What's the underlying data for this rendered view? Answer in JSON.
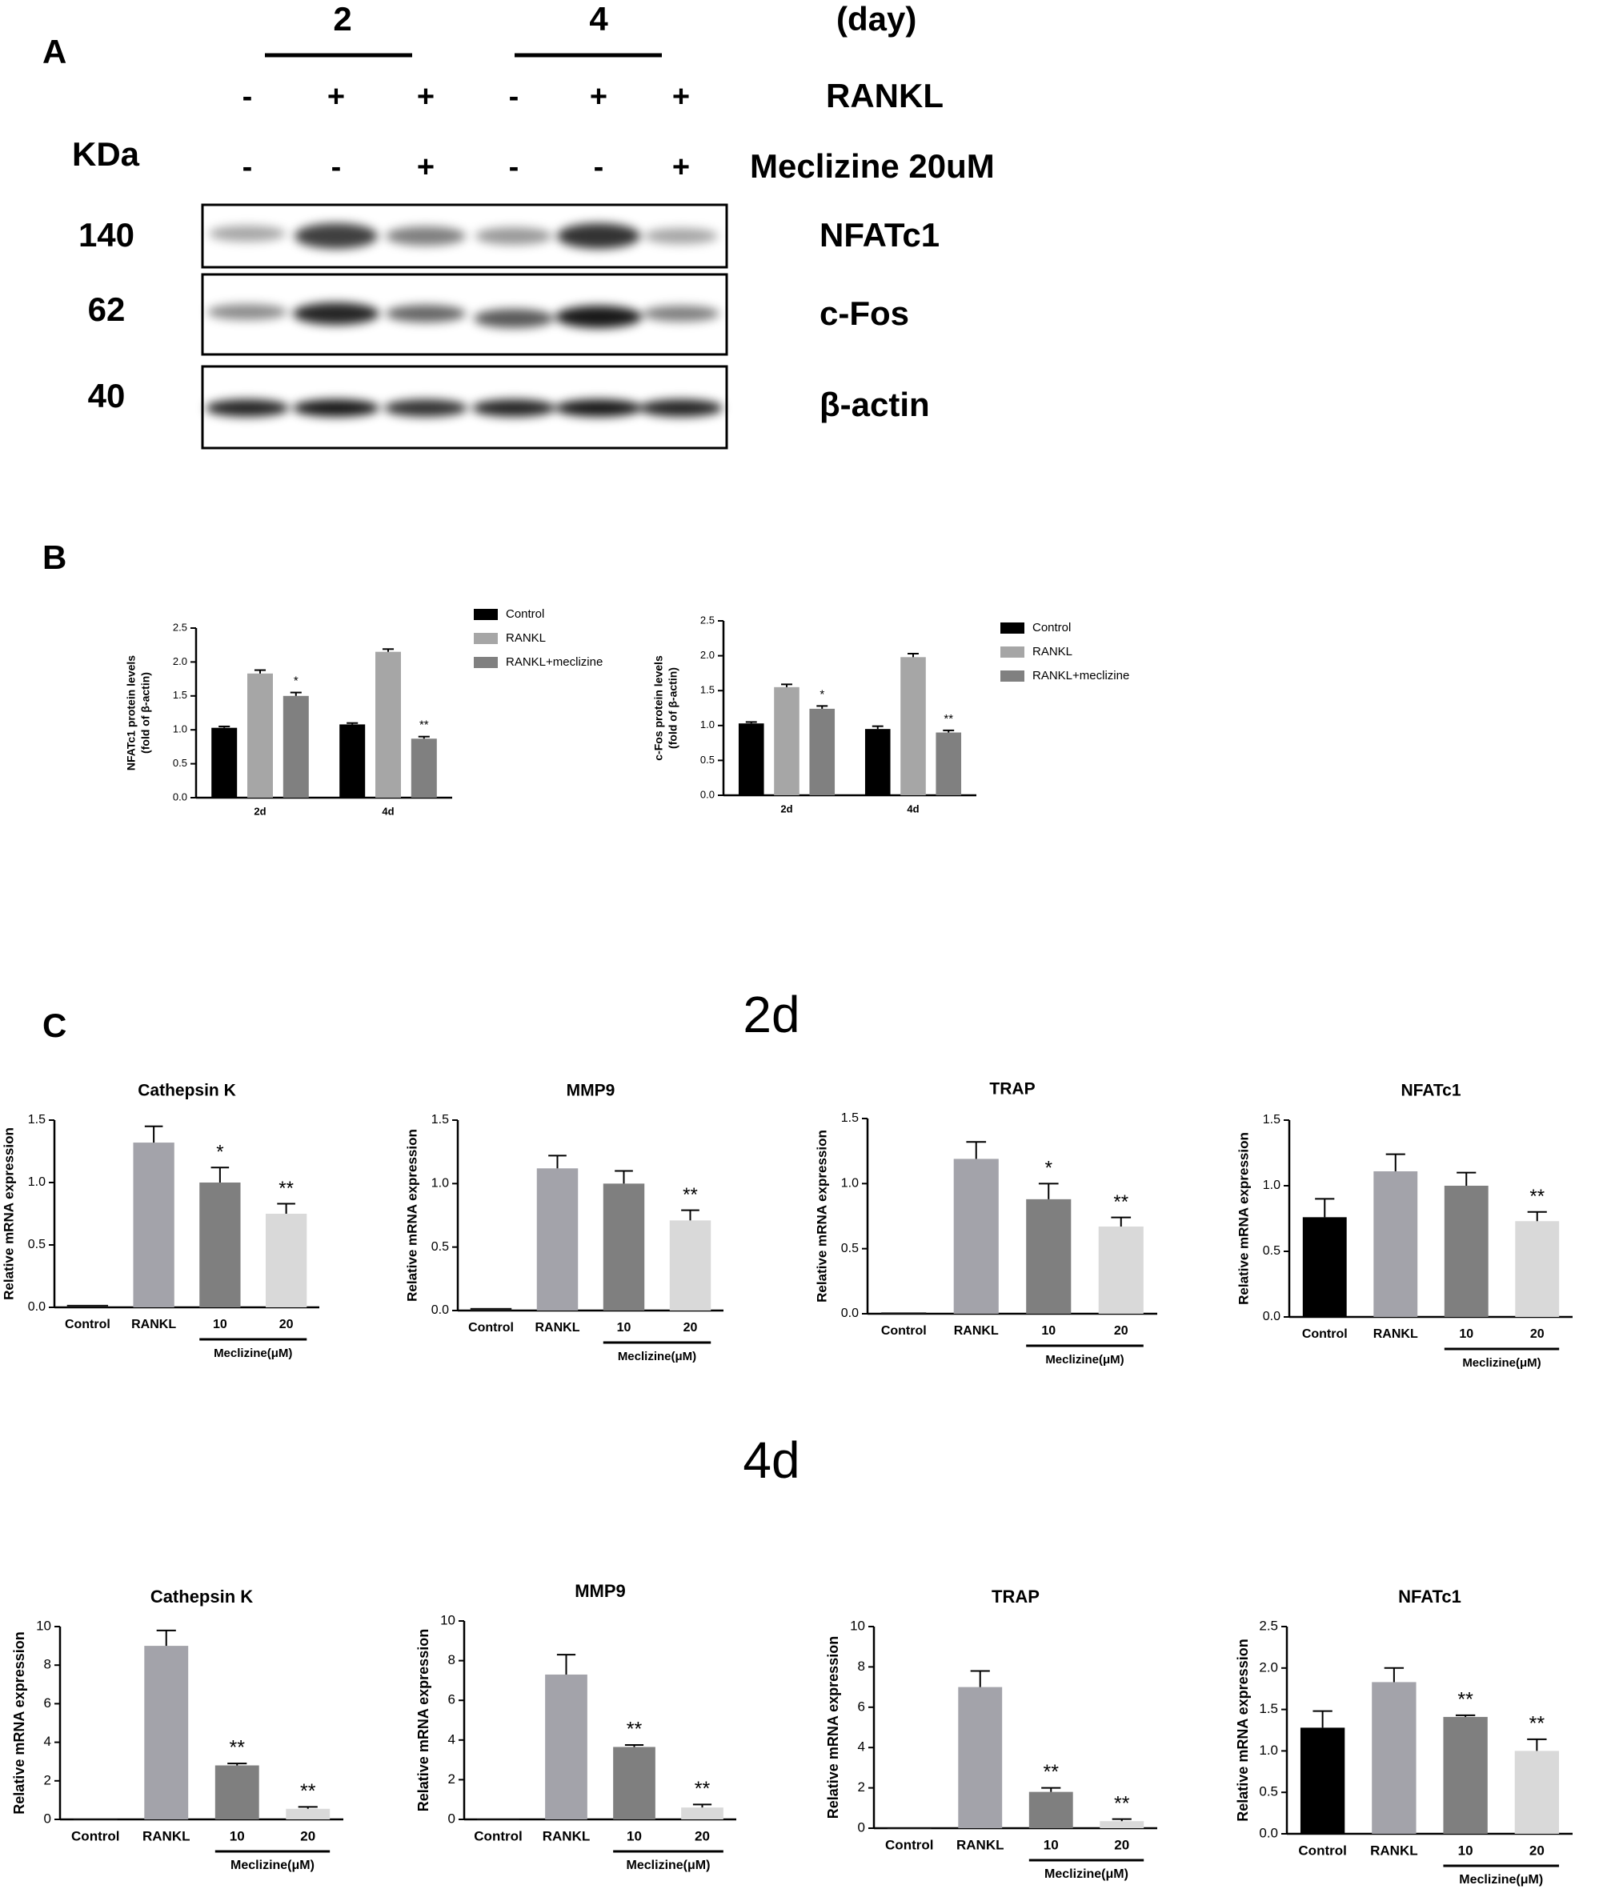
{
  "panels": {
    "a": "A",
    "b": "B",
    "c": "C"
  },
  "sections": {
    "day2": "2d",
    "day4": "4d"
  },
  "blot": {
    "days": [
      "2",
      "4"
    ],
    "day_unit": "(day)",
    "rankl_label": "RANKL",
    "rankl": [
      "-",
      "+",
      "+",
      "-",
      "+",
      "+"
    ],
    "meclizine_label": "Meclizine  20uM",
    "meclizine": [
      "-",
      "-",
      "+",
      "-",
      "-",
      "+"
    ],
    "kda_label": "KDa",
    "rows": [
      {
        "kda": "140",
        "name": "NFATc1"
      },
      {
        "kda": "62",
        "name": "c-Fos"
      },
      {
        "kda": "40",
        "name": "β-actin"
      }
    ]
  },
  "chart_data": [
    {
      "type": "bar",
      "ylabel": [
        "NFATc1 protein levels",
        "(fold of β-actin)"
      ],
      "categories": [
        "2d",
        "4d"
      ],
      "series": [
        {
          "name": "Control",
          "color": "#000000",
          "values": [
            1.03,
            1.08
          ],
          "errors": [
            0.02,
            0.02
          ]
        },
        {
          "name": "RANKL",
          "color": "#a6a6a6",
          "values": [
            1.83,
            2.15
          ],
          "errors": [
            0.05,
            0.04
          ]
        },
        {
          "name": "RANKL+meclizine",
          "color": "#808080",
          "values": [
            1.5,
            0.87
          ],
          "errors": [
            0.05,
            0.03
          ],
          "significance": [
            "*",
            "**"
          ]
        }
      ],
      "ylim": [
        0,
        2.5
      ],
      "yticks": [
        {
          "value": 0,
          "label": "0.0"
        },
        {
          "value": 0.5,
          "label": "0.5"
        },
        {
          "value": 1,
          "label": "1.0"
        },
        {
          "value": 1.5,
          "label": "1.5"
        },
        {
          "value": 2,
          "label": "2.0"
        },
        {
          "value": 2.5,
          "label": "2.5"
        }
      ]
    },
    {
      "type": "bar",
      "ylabel": [
        "c-Fos protein levels",
        "(fold of β-actin)"
      ],
      "categories": [
        "2d",
        "4d"
      ],
      "series": [
        {
          "name": "Control",
          "color": "#000000",
          "values": [
            1.03,
            0.95
          ],
          "errors": [
            0.02,
            0.04
          ]
        },
        {
          "name": "RANKL",
          "color": "#a6a6a6",
          "values": [
            1.55,
            1.98
          ],
          "errors": [
            0.04,
            0.05
          ]
        },
        {
          "name": "RANKL+meclizine",
          "color": "#808080",
          "values": [
            1.24,
            0.9
          ],
          "errors": [
            0.04,
            0.03
          ],
          "significance": [
            "*",
            "**"
          ]
        }
      ],
      "ylim": [
        0,
        2.5
      ],
      "yticks": [
        {
          "value": 0,
          "label": "0.0"
        },
        {
          "value": 0.5,
          "label": "0.5"
        },
        {
          "value": 1,
          "label": "1.0"
        },
        {
          "value": 1.5,
          "label": "1.5"
        },
        {
          "value": 2,
          "label": "2.0"
        },
        {
          "value": 2.5,
          "label": "2.5"
        }
      ]
    },
    {
      "type": "bar",
      "title": "Cathepsin K",
      "ylabel": "Relative mRNA expression",
      "categories": [
        "Control",
        "RANKL",
        "10",
        "20"
      ],
      "xgroup_label": "Meclizine(μM)",
      "values": [
        0.02,
        1.32,
        1.0,
        0.75
      ],
      "errors": [
        0,
        0.13,
        0.12,
        0.08
      ],
      "significance": [
        null,
        null,
        "*",
        "**"
      ],
      "colors": [
        "#1a1a1a",
        "#a3a3aa",
        "#7f7f7f",
        "#d9d9d9"
      ],
      "ylim": [
        0,
        1.5
      ],
      "yticks": [
        {
          "value": 0,
          "label": "0.0"
        },
        {
          "value": 0.5,
          "label": "0.5"
        },
        {
          "value": 1,
          "label": "1.0"
        },
        {
          "value": 1.5,
          "label": "1.5"
        }
      ]
    },
    {
      "type": "bar",
      "title": "MMP9",
      "ylabel": "Relative mRNA expression",
      "categories": [
        "Control",
        "RANKL",
        "10",
        "20"
      ],
      "xgroup_label": "Meclizine(μM)",
      "values": [
        0.02,
        1.12,
        1.0,
        0.71
      ],
      "errors": [
        0,
        0.1,
        0.1,
        0.08
      ],
      "significance": [
        null,
        null,
        null,
        "**"
      ],
      "colors": [
        "#1a1a1a",
        "#a3a3aa",
        "#7f7f7f",
        "#d9d9d9"
      ],
      "ylim": [
        0,
        1.5
      ],
      "yticks": [
        {
          "value": 0,
          "label": "0.0"
        },
        {
          "value": 0.5,
          "label": "0.5"
        },
        {
          "value": 1,
          "label": "1.0"
        },
        {
          "value": 1.5,
          "label": "1.5"
        }
      ]
    },
    {
      "type": "bar",
      "title": "TRAP",
      "ylabel": "Relative mRNA expression",
      "categories": [
        "Control",
        "RANKL",
        "10",
        "20"
      ],
      "xgroup_label": "Meclizine(μM)",
      "values": [
        0.01,
        1.19,
        0.88,
        0.67
      ],
      "errors": [
        0,
        0.13,
        0.12,
        0.07
      ],
      "significance": [
        null,
        null,
        "*",
        "**"
      ],
      "colors": [
        "#1a1a1a",
        "#a3a3aa",
        "#7f7f7f",
        "#d9d9d9"
      ],
      "ylim": [
        0,
        1.5
      ],
      "yticks": [
        {
          "value": 0,
          "label": "0.0"
        },
        {
          "value": 0.5,
          "label": "0.5"
        },
        {
          "value": 1,
          "label": "1.0"
        },
        {
          "value": 1.5,
          "label": "1.5"
        }
      ]
    },
    {
      "type": "bar",
      "title": "NFATc1",
      "ylabel": "Relative mRNA expression",
      "categories": [
        "Control",
        "RANKL",
        "10",
        "20"
      ],
      "xgroup_label": "Meclizine(μM)",
      "values": [
        0.76,
        1.11,
        1.0,
        0.73
      ],
      "errors": [
        0.14,
        0.13,
        0.1,
        0.07
      ],
      "significance": [
        null,
        null,
        null,
        "**"
      ],
      "colors": [
        "#000000",
        "#a3a3aa",
        "#7f7f7f",
        "#d9d9d9"
      ],
      "ylim": [
        0,
        1.5
      ],
      "yticks": [
        {
          "value": 0,
          "label": "0.0"
        },
        {
          "value": 0.5,
          "label": "0.5"
        },
        {
          "value": 1,
          "label": "1.0"
        },
        {
          "value": 1.5,
          "label": "1.5"
        }
      ]
    },
    {
      "type": "bar",
      "title": "Cathepsin K",
      "ylabel": "Relative mRNA expression",
      "categories": [
        "Control",
        "RANKL",
        "10",
        "20"
      ],
      "xgroup_label": "Meclizine(μM)",
      "values": [
        0.02,
        9.0,
        2.8,
        0.55
      ],
      "errors": [
        0,
        0.8,
        0.1,
        0.1
      ],
      "significance": [
        null,
        null,
        "**",
        "**"
      ],
      "colors": [
        "#1a1a1a",
        "#a3a3aa",
        "#7f7f7f",
        "#d9d9d9"
      ],
      "ylim": [
        0,
        10
      ],
      "yticks": [
        0,
        2,
        4,
        6,
        8,
        10
      ]
    },
    {
      "type": "bar",
      "title": "MMP9",
      "ylabel": "Relative mRNA expression",
      "categories": [
        "Control",
        "RANKL",
        "10",
        "20"
      ],
      "xgroup_label": "Meclizine(μM)",
      "values": [
        0.02,
        7.3,
        3.65,
        0.6
      ],
      "errors": [
        0,
        1.0,
        0.1,
        0.15
      ],
      "significance": [
        null,
        null,
        "**",
        "**"
      ],
      "colors": [
        "#1a1a1a",
        "#a3a3aa",
        "#7f7f7f",
        "#d9d9d9"
      ],
      "ylim": [
        0,
        10
      ],
      "yticks": [
        0,
        2,
        4,
        6,
        8,
        10
      ]
    },
    {
      "type": "bar",
      "title": "TRAP",
      "ylabel": "Relative mRNA expression",
      "categories": [
        "Control",
        "RANKL",
        "10",
        "20"
      ],
      "xgroup_label": "Meclizine(μM)",
      "values": [
        0,
        7.0,
        1.8,
        0.35
      ],
      "errors": [
        0,
        0.8,
        0.2,
        0.1
      ],
      "significance": [
        null,
        null,
        "**",
        "**"
      ],
      "colors": [
        "#1a1a1a",
        "#a3a3aa",
        "#7f7f7f",
        "#d9d9d9"
      ],
      "ylim": [
        0,
        10
      ],
      "yticks": [
        0,
        2,
        4,
        6,
        8,
        10
      ]
    },
    {
      "type": "bar",
      "title": "NFATc1",
      "ylabel": "Relative mRNA expression",
      "categories": [
        "Control",
        "RANKL",
        "10",
        "20"
      ],
      "xgroup_label": "Meclizine(μM)",
      "values": [
        1.28,
        1.83,
        1.41,
        1.0
      ],
      "errors": [
        0.2,
        0.17,
        0.02,
        0.14
      ],
      "significance": [
        null,
        null,
        "**",
        "**"
      ],
      "colors": [
        "#000000",
        "#a3a3aa",
        "#7f7f7f",
        "#d9d9d9"
      ],
      "ylim": [
        0,
        2.5
      ],
      "yticks": [
        {
          "value": 0,
          "label": "0.0"
        },
        {
          "value": 0.5,
          "label": "0.5"
        },
        {
          "value": 1,
          "label": "1.0"
        },
        {
          "value": 1.5,
          "label": "1.5"
        },
        {
          "value": 2,
          "label": "2.0"
        },
        {
          "value": 2.5,
          "label": "2.5"
        }
      ]
    }
  ]
}
